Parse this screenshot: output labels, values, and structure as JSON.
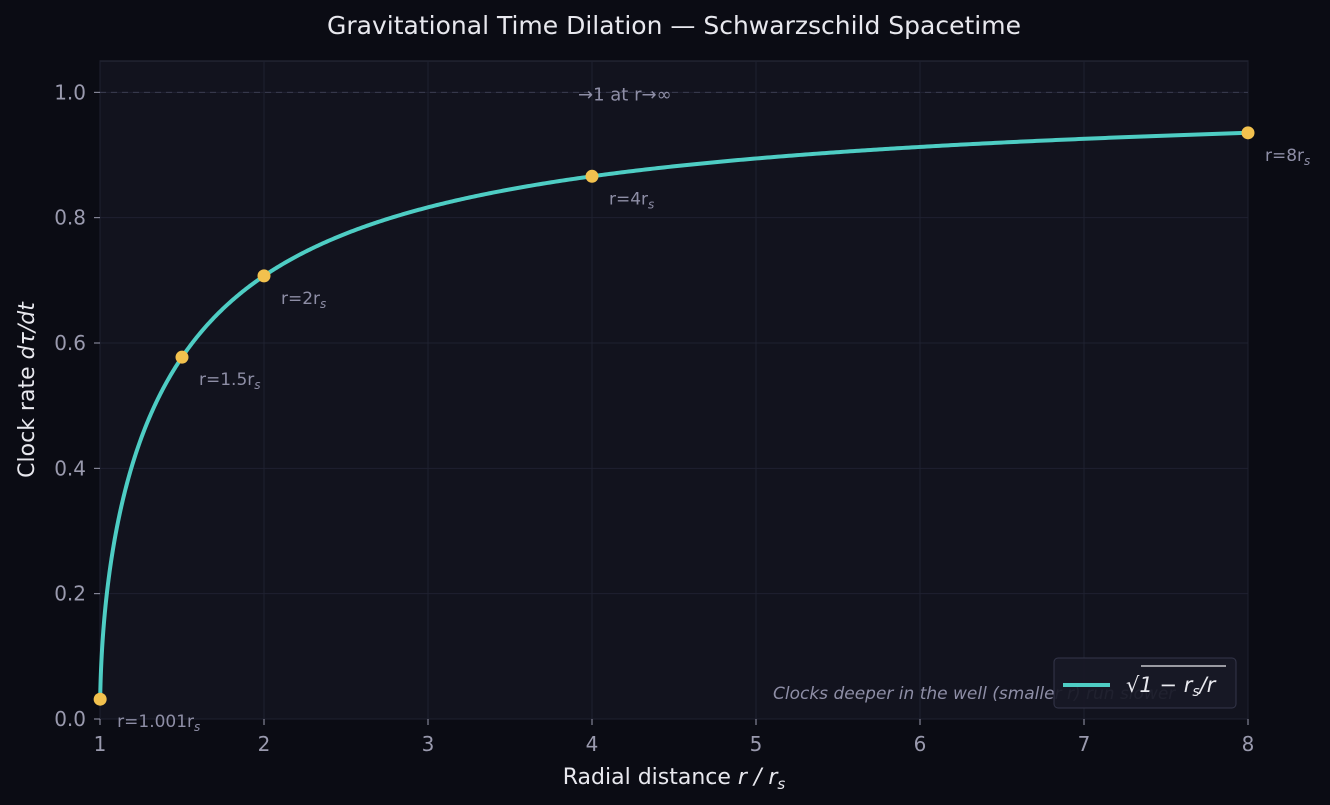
{
  "chart_data": {
    "type": "line",
    "title": "Gravitational Time Dilation — Schwarzschild Spacetime",
    "xlabel_text": "Radial distance",
    "xlabel_math": "r / r",
    "xlabel_math_sub": "s",
    "ylabel_text": "Clock rate",
    "ylabel_math": "dτ/dt",
    "xlim": [
      1,
      8
    ],
    "ylim": [
      0,
      1.05
    ],
    "xticks": [
      1,
      2,
      3,
      4,
      5,
      6,
      7,
      8
    ],
    "yticks": [
      "0.0",
      "0.2",
      "0.4",
      "0.6",
      "0.8",
      "1.0"
    ],
    "grid": true,
    "series": [
      {
        "name": "√1 − rs/r",
        "function": "sqrt(1 - rs/r)",
        "x_start": 1.001,
        "x_end": 8,
        "color": "#4ecdc4"
      }
    ],
    "legend": {
      "placement": "lower-right",
      "label_prefix": "√",
      "label_body": "1 − r",
      "label_sub": "s",
      "label_tail": "/r"
    },
    "markers": [
      {
        "x": 1.001,
        "y": 0.0316,
        "label": "r=1.001",
        "label_sub": "s"
      },
      {
        "x": 1.5,
        "y": 0.5774,
        "label": "r=1.5",
        "label_sub": "s"
      },
      {
        "x": 2,
        "y": 0.7071,
        "label": "r=2",
        "label_sub": "s"
      },
      {
        "x": 4,
        "y": 0.866,
        "label": "r=4",
        "label_sub": "s"
      },
      {
        "x": 8,
        "y": 0.9354,
        "label": "r=8",
        "label_sub": "s"
      }
    ],
    "marker_color": "#f2c14e",
    "asymptote": {
      "y": 1.0,
      "label": "→1 at r→∞"
    },
    "note": "Clocks deeper in the well (smaller r) run slower",
    "colors": {
      "background": "#0b0c14",
      "plot_background": "#12131e",
      "grid": "#1f2130",
      "text": "#e8e8ee",
      "tick_text": "#9a9aae",
      "annotation": "#8e8ea6"
    }
  }
}
